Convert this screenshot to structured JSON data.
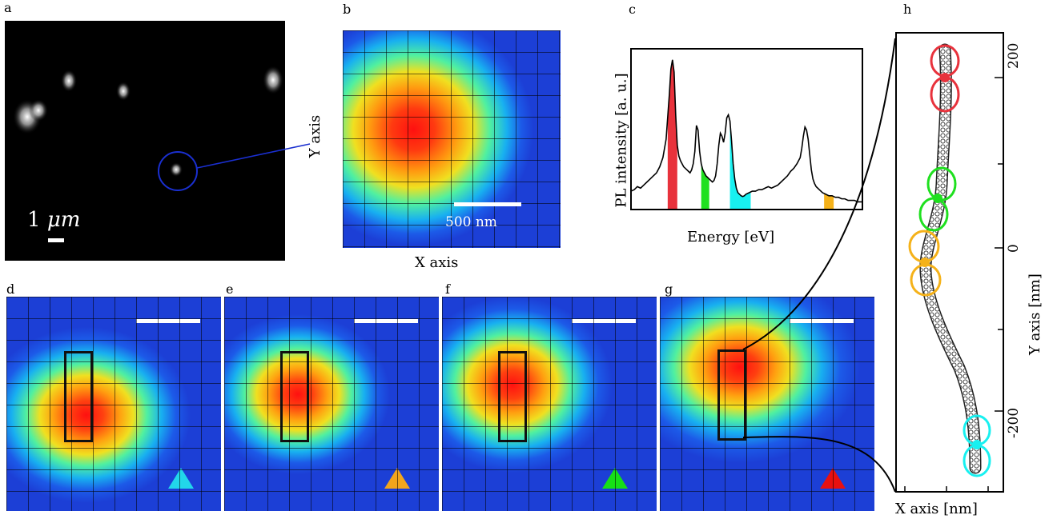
{
  "panels": {
    "a": {
      "label": "a",
      "scale_text": "1 ",
      "scale_unit": "μm"
    },
    "b": {
      "label": "b",
      "scale_text": "500 nm",
      "xlabel": "X axis",
      "ylabel": "Y axis"
    },
    "c": {
      "label": "c",
      "xlabel": "Energy [eV]",
      "ylabel": "PL intensity [a. u.]"
    },
    "d": {
      "label": "d",
      "marker_color": "#22d6ea"
    },
    "e": {
      "label": "e",
      "marker_color": "#f2a51c"
    },
    "f": {
      "label": "f",
      "marker_color": "#16e016"
    },
    "g": {
      "label": "g",
      "marker_color": "#e81010"
    },
    "h": {
      "label": "h",
      "xlabel": "X axis [nm]",
      "ylabel": "Y axis [nm]",
      "ticks": [
        "200",
        "0",
        "-200"
      ]
    }
  },
  "colors": {
    "red": "#e8323c",
    "green": "#1fe01f",
    "cyan": "#18f0f0",
    "orange": "#f5b21a",
    "link": "#1a2fd0"
  },
  "chart_data": {
    "type": "line",
    "title": "",
    "xlabel": "Energy [eV]",
    "ylabel": "PL intensity [a. u.]",
    "grid": false,
    "x": [
      0,
      4,
      8,
      12,
      16,
      20,
      24,
      28,
      32,
      36,
      40,
      44,
      48,
      50,
      52,
      54,
      56,
      58,
      60,
      62,
      64,
      66,
      68,
      70,
      72,
      74,
      76,
      78,
      80,
      82,
      84,
      86,
      88,
      90,
      92,
      94,
      96,
      98,
      100,
      102,
      104,
      106,
      108,
      110,
      112,
      114,
      116,
      118,
      120,
      122,
      124,
      126,
      128,
      130,
      132,
      134,
      136,
      138,
      140,
      142,
      144,
      148,
      152,
      156,
      160,
      164,
      168,
      172,
      176,
      180,
      184,
      188,
      192,
      196,
      200,
      204,
      208,
      212,
      214,
      216,
      218,
      220,
      222,
      224,
      226,
      228,
      230,
      232,
      234,
      236,
      238,
      240,
      244,
      248,
      252,
      256,
      260,
      264,
      268,
      272,
      276,
      280,
      284,
      288,
      290
    ],
    "values": [
      0.12,
      0.13,
      0.15,
      0.14,
      0.16,
      0.18,
      0.2,
      0.22,
      0.24,
      0.28,
      0.34,
      0.46,
      0.75,
      0.92,
      0.98,
      0.9,
      0.62,
      0.42,
      0.35,
      0.32,
      0.3,
      0.28,
      0.27,
      0.26,
      0.25,
      0.24,
      0.26,
      0.3,
      0.38,
      0.55,
      0.52,
      0.38,
      0.3,
      0.26,
      0.24,
      0.22,
      0.21,
      0.2,
      0.19,
      0.18,
      0.19,
      0.22,
      0.3,
      0.42,
      0.5,
      0.48,
      0.44,
      0.5,
      0.6,
      0.62,
      0.58,
      0.45,
      0.3,
      0.2,
      0.14,
      0.11,
      0.1,
      0.09,
      0.085,
      0.09,
      0.1,
      0.11,
      0.12,
      0.12,
      0.13,
      0.13,
      0.14,
      0.15,
      0.14,
      0.15,
      0.16,
      0.18,
      0.2,
      0.22,
      0.25,
      0.27,
      0.3,
      0.34,
      0.4,
      0.48,
      0.54,
      0.52,
      0.46,
      0.36,
      0.26,
      0.2,
      0.17,
      0.15,
      0.14,
      0.13,
      0.12,
      0.11,
      0.1,
      0.09,
      0.09,
      0.08,
      0.08,
      0.07,
      0.07,
      0.06,
      0.06,
      0.06,
      0.05,
      0.05,
      0.05
    ],
    "bands": [
      {
        "color": "#e8323c",
        "x0": 46,
        "x1": 58
      },
      {
        "color": "#1fe01f",
        "x0": 88,
        "x1": 98
      },
      {
        "color": "#18f0f0",
        "x0": 124,
        "x1": 150
      },
      {
        "color": "#f5b21a",
        "x0": 242,
        "x1": 254
      }
    ]
  }
}
